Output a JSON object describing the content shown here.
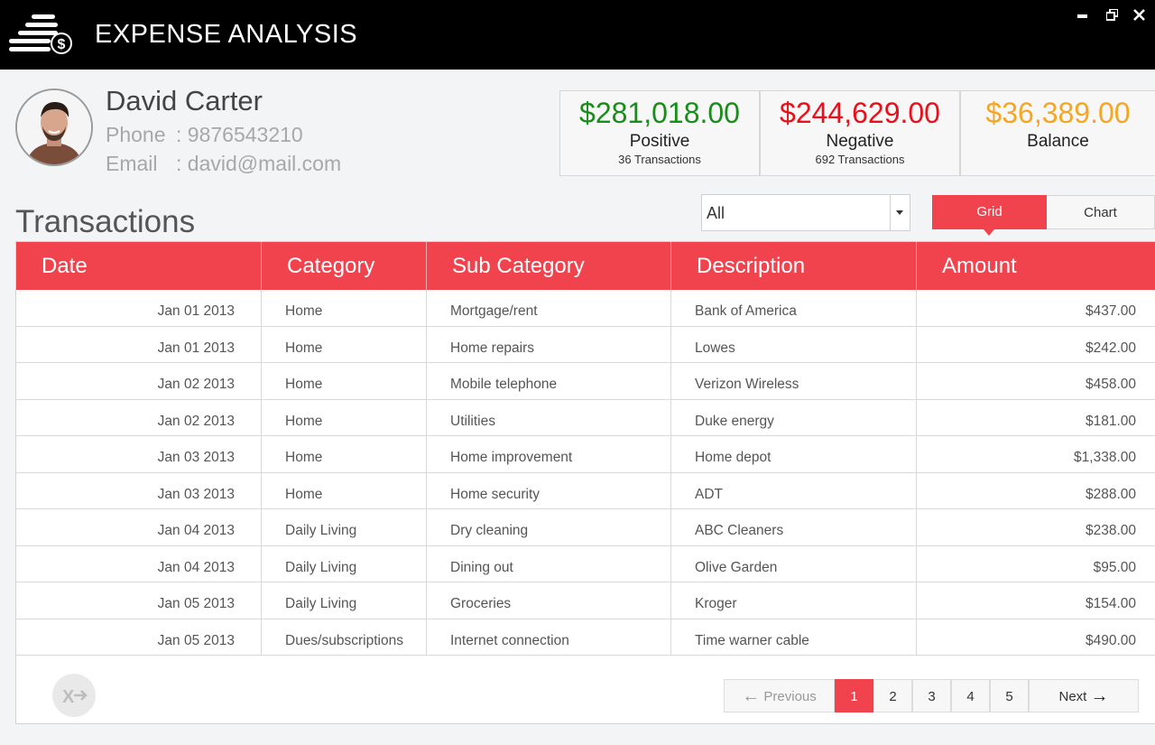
{
  "app": {
    "title": "EXPENSE ANALYSIS"
  },
  "window_controls": {
    "minimize": "▬",
    "restore": "❐",
    "close": "✕"
  },
  "profile": {
    "name": "David Carter",
    "phone_label": "Phone",
    "phone": ": 9876543210",
    "email_label": "Email",
    "email": ": david@mail.com"
  },
  "summary": {
    "positive": {
      "amount": "$281,018.00",
      "label": "Positive",
      "count": "36 Transactions",
      "color": "#1a8c1a"
    },
    "negative": {
      "amount": "$244,629.00",
      "label": "Negative",
      "count": "692 Transactions",
      "color": "#e8101a"
    },
    "balance": {
      "amount": "$36,389.00",
      "label": "Balance",
      "color": "#f5a623"
    }
  },
  "transactions": {
    "title": "Transactions",
    "filter_value": "All",
    "view_grid": "Grid",
    "view_chart": "Chart",
    "columns": [
      "Date",
      "Category",
      "Sub Category",
      "Description",
      "Amount"
    ],
    "rows": [
      [
        "Jan 01 2013",
        "Home",
        "Mortgage/rent",
        "Bank of America",
        "$437.00"
      ],
      [
        "Jan 01 2013",
        "Home",
        "Home repairs",
        "Lowes",
        "$242.00"
      ],
      [
        "Jan 02 2013",
        "Home",
        "Mobile telephone",
        "Verizon Wireless",
        "$458.00"
      ],
      [
        "Jan 02 2013",
        "Home",
        "Utilities",
        "Duke energy",
        "$181.00"
      ],
      [
        "Jan 03 2013",
        "Home",
        "Home improvement",
        "Home depot",
        "$1,338.00"
      ],
      [
        "Jan 03 2013",
        "Home",
        "Home security",
        "ADT",
        "$288.00"
      ],
      [
        "Jan 04 2013",
        "Daily Living",
        "Dry cleaning",
        "ABC Cleaners",
        "$238.00"
      ],
      [
        "Jan 04 2013",
        "Daily Living",
        "Dining out",
        "Olive Garden",
        "$95.00"
      ],
      [
        "Jan 05 2013",
        "Daily Living",
        "Groceries",
        "Kroger",
        "$154.00"
      ],
      [
        "Jan 05 2013",
        "Dues/subscriptions",
        "Internet connection",
        "Time warner cable",
        "$490.00"
      ]
    ]
  },
  "pagination": {
    "previous": "Previous",
    "next": "Next",
    "pages": [
      "1",
      "2",
      "3",
      "4",
      "5"
    ],
    "current": "1"
  },
  "icons": {
    "logo": "coin-stack-icon",
    "export": "export-excel-icon",
    "prev_arrow": "arrow-left-icon",
    "next_arrow": "arrow-right-icon"
  },
  "colors": {
    "accent": "#f0434d",
    "titlebar": "#000000"
  }
}
